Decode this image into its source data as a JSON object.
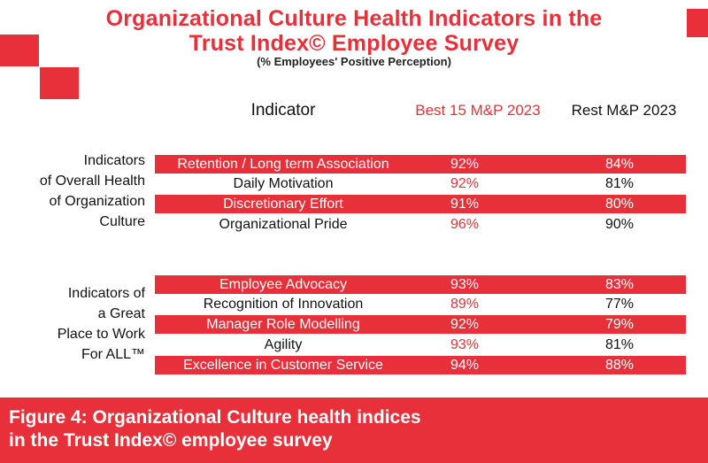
{
  "header": {
    "title_line1": "Organizational Culture Health Indicators in the",
    "title_line2": "Trust Index© Employee Survey",
    "subtitle": "(% Employees' Positive Perception)"
  },
  "columns": {
    "indicator": "Indicator",
    "best": "Best 15 M&P 2023",
    "rest": "Rest M&P 2023"
  },
  "groups": [
    {
      "label_lines": [
        "Indicators",
        "of Overall Health",
        "of Organization",
        "Culture"
      ],
      "rows": [
        {
          "indicator": "Retention / Long term Association",
          "best": "92%",
          "rest": "84%"
        },
        {
          "indicator": "Daily Motivation",
          "best": "92%",
          "rest": "81%"
        },
        {
          "indicator": "Discretionary Effort",
          "best": "91%",
          "rest": "80%"
        },
        {
          "indicator": "Organizational Pride",
          "best": "96%",
          "rest": "90%"
        }
      ]
    },
    {
      "label_lines": [
        "Indicators of",
        "a Great",
        "Place to Work",
        "For ALL™"
      ],
      "rows": [
        {
          "indicator": "Employee Advocacy",
          "best": "93%",
          "rest": "83%"
        },
        {
          "indicator": "Recognition of Innovation",
          "best": "89%",
          "rest": "77%"
        },
        {
          "indicator": "Manager Role Modelling",
          "best": "92%",
          "rest": "79%"
        },
        {
          "indicator": "Agility",
          "best": "93%",
          "rest": "81%"
        },
        {
          "indicator": "Excellence in Customer Service",
          "best": "94%",
          "rest": "88%"
        }
      ]
    }
  ],
  "caption": {
    "line1": "Figure 4: Organizational Culture health indices",
    "line2": "in the Trust Index© employee survey"
  },
  "colors": {
    "accent": "#e8303a"
  }
}
